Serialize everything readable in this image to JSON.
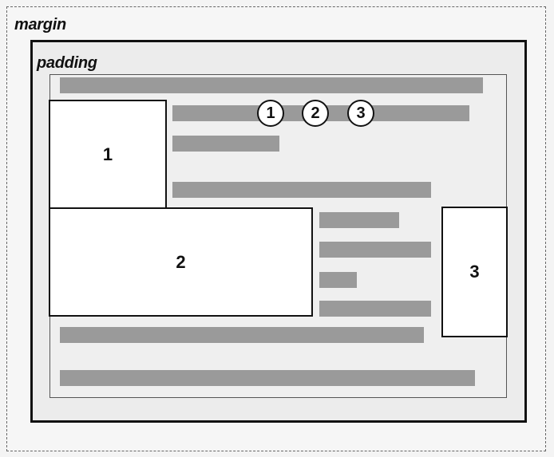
{
  "labels": {
    "margin": "margin",
    "padding": "padding"
  },
  "boxes": [
    {
      "label": "1"
    },
    {
      "label": "2"
    },
    {
      "label": "3"
    }
  ],
  "markers": [
    {
      "label": "1"
    },
    {
      "label": "2"
    },
    {
      "label": "3"
    }
  ]
}
